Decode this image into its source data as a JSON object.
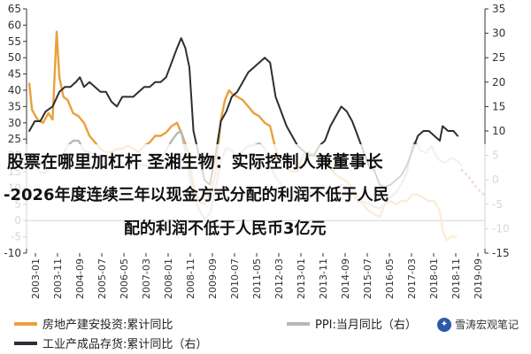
{
  "overlay": {
    "line1": "股票在哪里加杠杆 圣湘生物：实际控制人兼董事长",
    "line2": "-2026年度连续三年以现金方式分配的利润不低于人民",
    "line3": "配的利润不低于人民币3亿元"
  },
  "watermark": "雪涛宏观笔记",
  "colors": {
    "series1": "#e8a13a",
    "series2": "#b8b8bc",
    "series3": "#2b2f36",
    "forecast": "#c0392b",
    "axis": "#333333"
  },
  "chart_data": {
    "type": "line",
    "left_axis": {
      "ticks": [
        -10,
        -5,
        0,
        5,
        10,
        15,
        20,
        25,
        30,
        35,
        40,
        45,
        50,
        55,
        60,
        65
      ],
      "labels": [
        "-10",
        "-5",
        "0",
        "5",
        "10",
        "15",
        "20",
        "25",
        "30",
        "35",
        "40",
        "45",
        "50",
        "55",
        "60",
        "65"
      ],
      "range": [
        -10,
        65
      ]
    },
    "right_axis": {
      "ticks": [
        -15,
        -10,
        -5,
        0,
        5,
        10,
        15,
        20,
        25,
        30,
        35
      ],
      "labels": [
        "-15",
        "-10",
        "-5",
        "0",
        "5",
        "10",
        "15",
        "20",
        "25",
        "30",
        "35"
      ],
      "range": [
        -15,
        35
      ]
    },
    "x_ticks": [
      "2003-01",
      "2003-11",
      "2004-09",
      "2005-07",
      "2006-05",
      "2007-03",
      "2008-01",
      "2008-11",
      "2009-09",
      "2010-07",
      "2011-05",
      "2012-03",
      "2013-01",
      "2013-11",
      "2014-09",
      "2015-07",
      "2016-05",
      "2017-03",
      "2018-01",
      "2018-11",
      "2019-09"
    ],
    "x_range": [
      2003.0,
      2019.75
    ],
    "series": [
      {
        "name": "房地产建安投资:累计同比",
        "axis": "left",
        "points": [
          [
            2003.1,
            42
          ],
          [
            2003.2,
            34
          ],
          [
            2003.4,
            31
          ],
          [
            2003.6,
            30
          ],
          [
            2003.8,
            33
          ],
          [
            2003.95,
            31
          ],
          [
            2004.1,
            58
          ],
          [
            2004.2,
            44
          ],
          [
            2004.35,
            38
          ],
          [
            2004.5,
            37
          ],
          [
            2004.7,
            33
          ],
          [
            2004.9,
            32
          ],
          [
            2005.1,
            30
          ],
          [
            2005.3,
            26
          ],
          [
            2005.5,
            24
          ],
          [
            2005.7,
            22
          ],
          [
            2005.9,
            21
          ],
          [
            2006.1,
            21
          ],
          [
            2006.3,
            22
          ],
          [
            2006.5,
            22
          ],
          [
            2006.7,
            23
          ],
          [
            2006.9,
            22
          ],
          [
            2007.1,
            21
          ],
          [
            2007.3,
            23
          ],
          [
            2007.5,
            24
          ],
          [
            2007.7,
            26
          ],
          [
            2007.9,
            26
          ],
          [
            2008.1,
            27
          ],
          [
            2008.3,
            29
          ],
          [
            2008.5,
            30
          ],
          [
            2008.7,
            26
          ],
          [
            2008.9,
            21
          ],
          [
            2009.1,
            11
          ],
          [
            2009.3,
            6
          ],
          [
            2009.5,
            5
          ],
          [
            2009.7,
            8
          ],
          [
            2009.9,
            14
          ],
          [
            2010.1,
            31
          ],
          [
            2010.25,
            37
          ],
          [
            2010.4,
            40
          ],
          [
            2010.5,
            39
          ],
          [
            2010.7,
            38
          ],
          [
            2010.9,
            37
          ],
          [
            2011.1,
            35
          ],
          [
            2011.3,
            33
          ],
          [
            2011.5,
            32
          ],
          [
            2011.7,
            30
          ],
          [
            2011.9,
            29
          ],
          [
            2012.1,
            22
          ],
          [
            2012.3,
            18
          ],
          [
            2012.5,
            16
          ],
          [
            2012.7,
            15
          ],
          [
            2012.9,
            15
          ],
          [
            2013.1,
            20
          ],
          [
            2013.3,
            21
          ],
          [
            2013.5,
            20
          ],
          [
            2013.7,
            19
          ],
          [
            2013.9,
            19
          ],
          [
            2014.1,
            16
          ],
          [
            2014.3,
            14
          ],
          [
            2014.5,
            13
          ],
          [
            2014.7,
            12
          ],
          [
            2014.9,
            10
          ],
          [
            2015.1,
            7
          ],
          [
            2015.3,
            5
          ],
          [
            2015.5,
            3
          ],
          [
            2015.7,
            2
          ],
          [
            2015.9,
            1
          ],
          [
            2016.1,
            5
          ],
          [
            2016.3,
            6
          ],
          [
            2016.5,
            5
          ],
          [
            2016.7,
            6
          ],
          [
            2016.9,
            6
          ],
          [
            2017.1,
            8
          ],
          [
            2017.3,
            8
          ],
          [
            2017.5,
            7
          ],
          [
            2017.7,
            6
          ],
          [
            2017.9,
            6
          ],
          [
            2018.1,
            3
          ],
          [
            2018.2,
            -3
          ],
          [
            2018.35,
            -6
          ],
          [
            2018.5,
            -5
          ],
          [
            2018.7,
            -5
          ]
        ]
      },
      {
        "name": "PPI:当月同比",
        "axis": "right",
        "points": [
          [
            2003.1,
            3
          ],
          [
            2003.3,
            3.5
          ],
          [
            2003.5,
            1.5
          ],
          [
            2003.7,
            1.5
          ],
          [
            2003.95,
            3
          ],
          [
            2004.3,
            5
          ],
          [
            2004.5,
            7
          ],
          [
            2004.7,
            8
          ],
          [
            2004.9,
            8
          ],
          [
            2005.1,
            6
          ],
          [
            2005.4,
            5.5
          ],
          [
            2005.7,
            5
          ],
          [
            2005.9,
            3
          ],
          [
            2006.1,
            3
          ],
          [
            2006.3,
            2.8
          ],
          [
            2006.6,
            3.5
          ],
          [
            2006.9,
            3
          ],
          [
            2007.1,
            3
          ],
          [
            2007.4,
            3
          ],
          [
            2007.6,
            2.5
          ],
          [
            2007.9,
            4
          ],
          [
            2008.1,
            6
          ],
          [
            2008.3,
            8
          ],
          [
            2008.5,
            9.5
          ],
          [
            2008.65,
            10
          ],
          [
            2008.8,
            6
          ],
          [
            2008.95,
            1
          ],
          [
            2009.1,
            -3
          ],
          [
            2009.3,
            -6
          ],
          [
            2009.5,
            -8
          ],
          [
            2009.7,
            -7
          ],
          [
            2009.9,
            -2
          ],
          [
            2010.1,
            4
          ],
          [
            2010.3,
            6.5
          ],
          [
            2010.5,
            6
          ],
          [
            2010.7,
            4.5
          ],
          [
            2010.9,
            6
          ],
          [
            2011.1,
            7
          ],
          [
            2011.3,
            7
          ],
          [
            2011.5,
            7.5
          ],
          [
            2011.7,
            6.5
          ],
          [
            2011.9,
            3
          ],
          [
            2012.1,
            0.5
          ],
          [
            2012.3,
            -1
          ],
          [
            2012.5,
            -2.5
          ],
          [
            2012.7,
            -3.5
          ],
          [
            2012.9,
            -2
          ],
          [
            2013.1,
            -1.5
          ],
          [
            2013.3,
            -2.5
          ],
          [
            2013.5,
            -2.7
          ],
          [
            2013.7,
            -1.7
          ],
          [
            2013.9,
            -1.5
          ],
          [
            2014.1,
            -1.8
          ],
          [
            2014.3,
            -2
          ],
          [
            2014.5,
            -1
          ],
          [
            2014.7,
            -1.5
          ],
          [
            2014.9,
            -2.5
          ],
          [
            2015.1,
            -4.5
          ],
          [
            2015.3,
            -4.5
          ],
          [
            2015.5,
            -4.8
          ],
          [
            2015.7,
            -5.5
          ],
          [
            2015.9,
            -5.9
          ],
          [
            2016.1,
            -5
          ],
          [
            2016.3,
            -3.5
          ],
          [
            2016.5,
            -2.6
          ],
          [
            2016.7,
            -0.8
          ],
          [
            2016.9,
            1.5
          ],
          [
            2017.1,
            7
          ],
          [
            2017.2,
            7.8
          ],
          [
            2017.4,
            6
          ],
          [
            2017.6,
            5.5
          ],
          [
            2017.8,
            6.9
          ],
          [
            2017.95,
            5
          ],
          [
            2018.1,
            4
          ],
          [
            2018.3,
            3.5
          ],
          [
            2018.5,
            4.5
          ],
          [
            2018.7,
            4.1
          ],
          [
            2018.9,
            3
          ]
        ]
      },
      {
        "name": "工业产成品存货:累计同比（右）",
        "axis": "right",
        "points": [
          [
            2003.1,
            10
          ],
          [
            2003.3,
            12
          ],
          [
            2003.5,
            12
          ],
          [
            2003.7,
            14
          ],
          [
            2003.95,
            15
          ],
          [
            2004.2,
            18
          ],
          [
            2004.4,
            19
          ],
          [
            2004.6,
            19
          ],
          [
            2004.8,
            20
          ],
          [
            2004.95,
            21
          ],
          [
            2005.1,
            19
          ],
          [
            2005.3,
            20
          ],
          [
            2005.5,
            19
          ],
          [
            2005.7,
            18
          ],
          [
            2005.9,
            18
          ],
          [
            2006.1,
            16
          ],
          [
            2006.3,
            15
          ],
          [
            2006.5,
            17
          ],
          [
            2006.7,
            17
          ],
          [
            2006.9,
            17
          ],
          [
            2007.1,
            18
          ],
          [
            2007.3,
            19
          ],
          [
            2007.5,
            19
          ],
          [
            2007.7,
            20
          ],
          [
            2007.9,
            20
          ],
          [
            2008.1,
            21
          ],
          [
            2008.3,
            24
          ],
          [
            2008.5,
            27
          ],
          [
            2008.65,
            29
          ],
          [
            2008.8,
            27
          ],
          [
            2008.95,
            23
          ],
          [
            2009.1,
            10
          ],
          [
            2009.3,
            5
          ],
          [
            2009.5,
            0
          ],
          [
            2009.7,
            -1
          ],
          [
            2009.9,
            5
          ],
          [
            2010.1,
            12
          ],
          [
            2010.3,
            14
          ],
          [
            2010.5,
            17
          ],
          [
            2010.7,
            18
          ],
          [
            2010.9,
            20
          ],
          [
            2011.1,
            22
          ],
          [
            2011.3,
            23
          ],
          [
            2011.5,
            24
          ],
          [
            2011.7,
            25
          ],
          [
            2011.9,
            24
          ],
          [
            2012.1,
            17
          ],
          [
            2012.3,
            14
          ],
          [
            2012.5,
            11
          ],
          [
            2012.7,
            9
          ],
          [
            2012.9,
            7
          ],
          [
            2013.1,
            6
          ],
          [
            2013.3,
            5
          ],
          [
            2013.5,
            5
          ],
          [
            2013.7,
            7
          ],
          [
            2013.9,
            8
          ],
          [
            2014.1,
            11
          ],
          [
            2014.3,
            13
          ],
          [
            2014.5,
            15
          ],
          [
            2014.7,
            14
          ],
          [
            2014.9,
            12
          ],
          [
            2015.1,
            9
          ],
          [
            2015.3,
            6
          ],
          [
            2015.5,
            3
          ],
          [
            2015.7,
            2
          ],
          [
            2015.9,
            -1
          ],
          [
            2016.1,
            -1.5
          ],
          [
            2016.3,
            -1
          ],
          [
            2016.5,
            0
          ],
          [
            2016.7,
            1
          ],
          [
            2016.9,
            3
          ],
          [
            2017.1,
            6
          ],
          [
            2017.3,
            9
          ],
          [
            2017.5,
            10
          ],
          [
            2017.7,
            10
          ],
          [
            2017.9,
            9
          ],
          [
            2018.1,
            8
          ],
          [
            2018.2,
            11
          ],
          [
            2018.4,
            10
          ],
          [
            2018.6,
            10
          ],
          [
            2018.75,
            9
          ]
        ]
      },
      {
        "name": "",
        "axis": "right",
        "style": "dotted",
        "points": [
          [
            2018.9,
            2
          ],
          [
            2019.1,
            1
          ],
          [
            2019.3,
            -0.5
          ],
          [
            2019.5,
            -2
          ],
          [
            2019.7,
            -3
          ]
        ]
      }
    ]
  },
  "legend": [
    {
      "label": "房地产建安投资:累计同比",
      "color": "#e8a13a"
    },
    {
      "label": "PPI:当月同比（右）",
      "color": "#b8b8bc"
    },
    {
      "label": "工业产成品存货:累计同比（右）",
      "color": "#2b2f36"
    }
  ]
}
